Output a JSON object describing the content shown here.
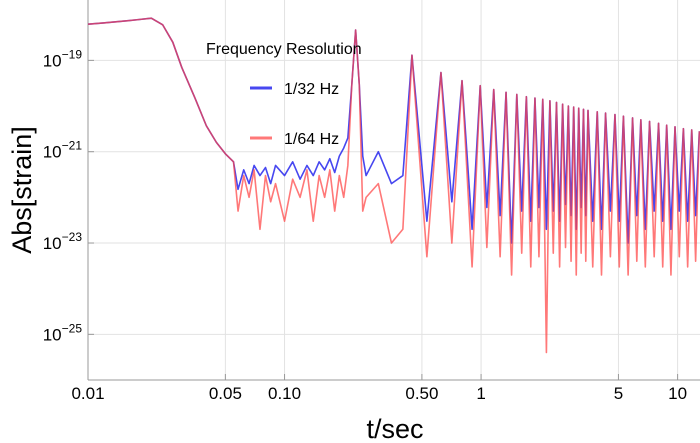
{
  "chart_data": {
    "type": "line",
    "xlabel": "t/sec",
    "ylabel": "Abs[strain]",
    "log_x": true,
    "log_y": true,
    "grid": true,
    "xlim": [
      0.01,
      13
    ],
    "ylim": [
      1e-26,
      2.1e-18
    ],
    "xticks": [
      0.01,
      0.05,
      {
        "value": 0.1,
        "label": "0.10"
      },
      {
        "value": 0.5,
        "label": "0.50"
      },
      1,
      5,
      10
    ],
    "yticks": [
      {
        "value": 1e-25,
        "label": "10−25"
      },
      {
        "value": 1e-23,
        "label": "10−23"
      },
      {
        "value": 1e-21,
        "label": "10−21"
      },
      {
        "value": 1e-19,
        "label": "10−19"
      }
    ],
    "legend_title": "Frequency Resolution",
    "x": [
      0.01,
      0.012,
      0.015,
      0.018,
      0.021,
      0.024,
      0.027,
      0.03,
      0.035,
      0.04,
      0.045,
      0.05,
      0.055,
      0.058,
      0.062,
      0.066,
      0.07,
      0.075,
      0.08,
      0.085,
      0.09,
      0.1,
      0.11,
      0.12,
      0.13,
      0.14,
      0.15,
      0.16,
      0.17,
      0.18,
      0.19,
      0.2,
      0.21,
      0.22,
      0.23,
      0.24,
      0.25,
      0.26,
      0.3,
      0.35,
      0.4,
      0.445,
      0.53,
      0.625,
      0.71,
      0.8,
      0.9,
      0.99,
      1.07,
      1.16,
      1.25,
      1.34,
      1.43,
      1.52,
      1.61,
      1.7,
      1.79,
      1.88,
      1.97,
      2.06,
      2.15,
      2.24,
      2.33,
      2.42,
      2.51,
      2.6,
      2.69,
      2.78,
      2.87,
      2.96,
      3.05,
      3.14,
      3.23,
      3.32,
      3.41,
      3.5,
      3.7,
      3.9,
      4.1,
      4.3,
      4.55,
      4.8,
      5.05,
      5.3,
      5.6,
      5.9,
      6.2,
      6.5,
      6.85,
      7.2,
      7.6,
      8.0,
      8.4,
      8.8,
      9.25,
      9.7,
      10.2,
      10.7,
      11.25,
      11.8,
      12.35,
      12.9
    ],
    "series": [
      {
        "name": "1/32 Hz",
        "color": "#3333ee",
        "values": [
          6.2e-19,
          6.6e-19,
          7.2e-19,
          7.8e-19,
          8.4e-19,
          6e-19,
          2.5e-19,
          7e-20,
          1.5e-20,
          3.7e-21,
          1.6e-21,
          9e-22,
          6e-22,
          1.5e-22,
          4e-22,
          2e-22,
          5e-22,
          3e-22,
          4.5e-22,
          2e-22,
          5e-22,
          3e-22,
          6e-22,
          2.5e-22,
          5e-22,
          3e-22,
          6e-22,
          4e-22,
          7e-22,
          3.5e-22,
          8e-22,
          1.2e-21,
          2e-21,
          3e-20,
          4.6e-19,
          3e-20,
          8e-22,
          3e-22,
          1e-21,
          2e-22,
          3e-22,
          1.3e-19,
          3e-23,
          5.4e-20,
          8e-23,
          3.6e-20,
          2e-23,
          2.8e-20,
          6e-23,
          2.3e-20,
          4e-23,
          2e-20,
          1e-23,
          1.8e-20,
          5e-23,
          1.6e-20,
          3e-23,
          1.5e-20,
          6e-23,
          1.4e-20,
          2e-23,
          1.3e-20,
          5e-23,
          1.2e-20,
          3e-23,
          1.1e-20,
          7e-23,
          1e-20,
          4e-23,
          9.5e-21,
          2e-23,
          9e-21,
          6e-23,
          8.5e-21,
          4e-23,
          8e-21,
          3e-23,
          7.5e-21,
          2e-23,
          7e-21,
          5e-23,
          6.5e-21,
          3e-23,
          6e-21,
          1e-23,
          5.5e-21,
          4e-23,
          5e-21,
          2e-23,
          4.6e-21,
          5e-23,
          4.2e-21,
          3e-23,
          3.8e-21,
          2e-23,
          3.5e-21,
          5e-23,
          3.2e-21,
          3e-23,
          3e-21,
          4e-23,
          2.8e-21
        ]
      },
      {
        "name": "1/64 Hz",
        "color": "#ff4444",
        "values": [
          6.2e-19,
          6.6e-19,
          7.2e-19,
          7.8e-19,
          8.4e-19,
          6e-19,
          2.5e-19,
          7e-20,
          1.5e-20,
          3.7e-21,
          1.6e-21,
          9e-22,
          6e-22,
          5e-23,
          3e-22,
          1e-22,
          4e-22,
          2e-23,
          3e-22,
          8e-23,
          2e-22,
          3e-23,
          2.5e-22,
          1e-22,
          4e-22,
          3e-23,
          3e-22,
          1e-22,
          4e-22,
          5e-23,
          3e-22,
          1e-22,
          5e-22,
          3e-20,
          4.6e-19,
          3e-20,
          5e-23,
          1e-22,
          2e-22,
          1e-23,
          2e-23,
          1.3e-19,
          5e-24,
          5.4e-20,
          1e-23,
          3.6e-20,
          3e-24,
          2.8e-20,
          8e-24,
          2.3e-20,
          5e-24,
          2e-20,
          2e-24,
          1.8e-20,
          6e-24,
          1.6e-20,
          3e-24,
          1.5e-20,
          5e-24,
          1.4e-20,
          4e-26,
          1.3e-20,
          6e-24,
          1.2e-20,
          3e-24,
          1.1e-20,
          8e-24,
          1e-20,
          4e-24,
          9.5e-21,
          2e-24,
          9e-21,
          6e-24,
          8.5e-21,
          4e-24,
          8e-21,
          3e-24,
          7.5e-21,
          2e-24,
          7e-21,
          5e-24,
          6.5e-21,
          3e-24,
          6e-21,
          2e-24,
          5.5e-21,
          4e-24,
          5e-21,
          3e-24,
          4.6e-21,
          5e-24,
          4.2e-21,
          3e-24,
          3.8e-21,
          2e-24,
          3.5e-21,
          5e-24,
          3.2e-21,
          3e-24,
          3e-21,
          4e-24,
          2.8e-21
        ]
      }
    ]
  }
}
